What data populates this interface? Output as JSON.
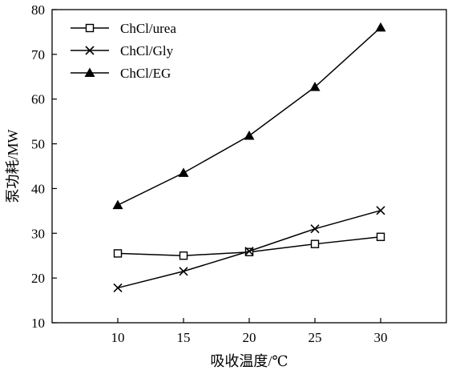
{
  "chart_data": {
    "type": "line",
    "xlabel": "吸收温度/℃",
    "ylabel": "泵功耗/MW",
    "x": [
      10,
      15,
      20,
      25,
      30
    ],
    "xlim": [
      5,
      35
    ],
    "ylim": [
      10,
      80
    ],
    "xticks": [
      "10",
      "15",
      "20",
      "25",
      "30"
    ],
    "yticks": [
      "10",
      "20",
      "30",
      "40",
      "50",
      "60",
      "70",
      "80"
    ],
    "grid": false,
    "legend_position": "top-left",
    "series": [
      {
        "name": "ChCl/urea",
        "marker": "open-square",
        "values": [
          25.5,
          25.0,
          25.8,
          27.6,
          29.2
        ]
      },
      {
        "name": "ChCl/Gly",
        "marker": "cross",
        "values": [
          17.8,
          21.5,
          26.0,
          31.0,
          35.1
        ]
      },
      {
        "name": "ChCl/EG",
        "marker": "filled-triangle",
        "values": [
          36.3,
          43.5,
          51.8,
          62.7,
          76.0
        ]
      }
    ]
  }
}
